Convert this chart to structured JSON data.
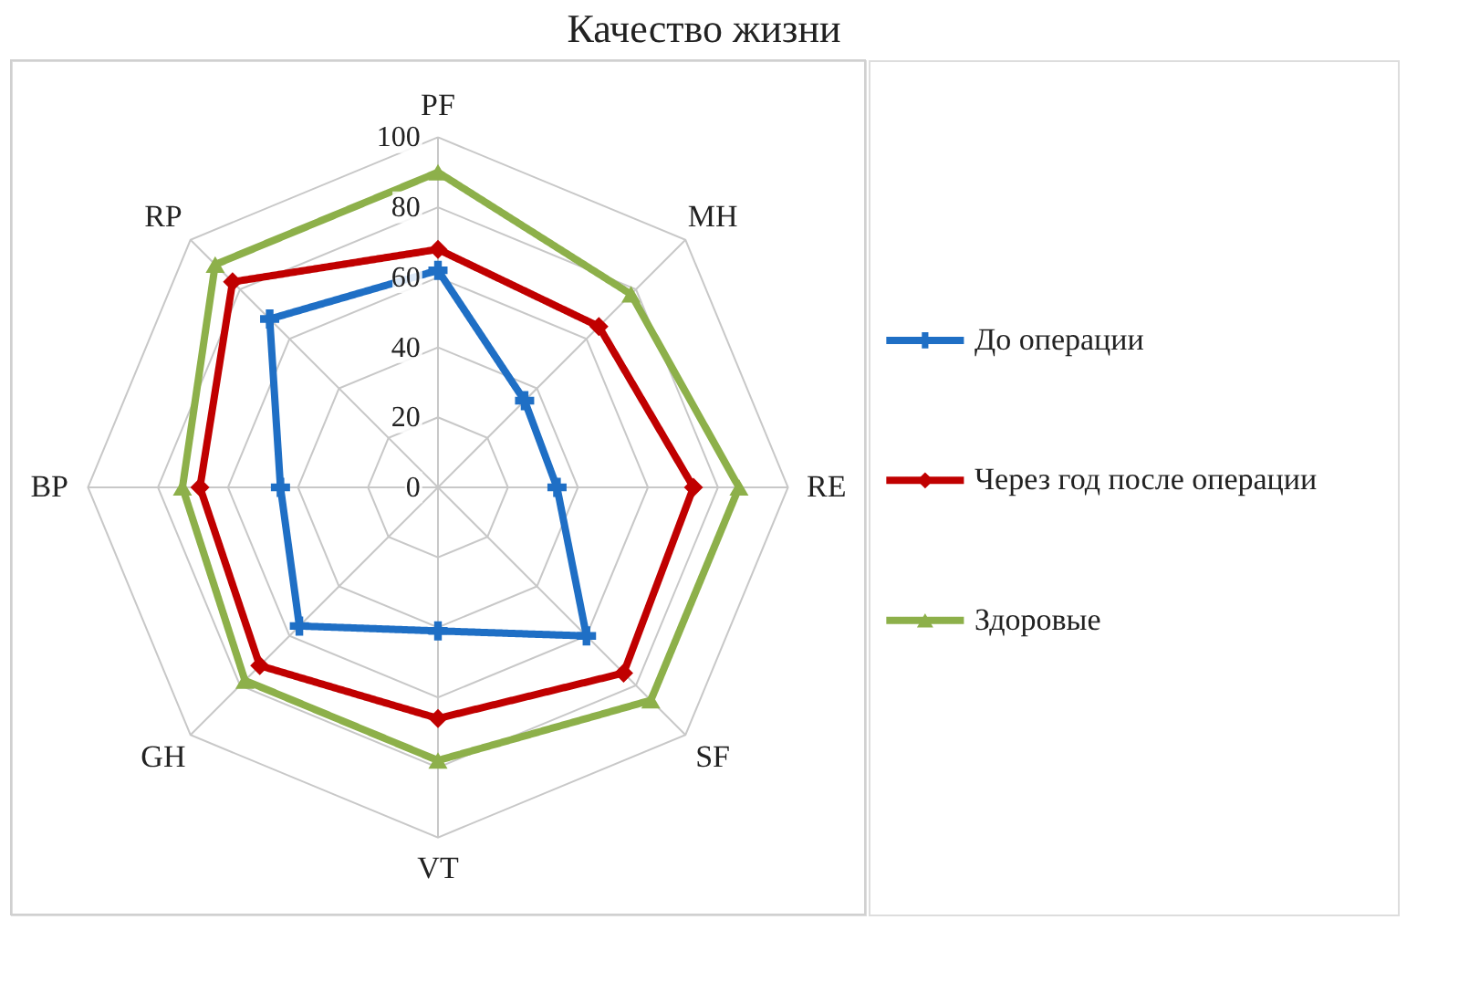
{
  "chart_data": {
    "type": "radar",
    "title": "Качество жизни",
    "categories": [
      "PF",
      "MH",
      "RE",
      "SF",
      "VT",
      "GH",
      "BP",
      "RP"
    ],
    "ylim": [
      0,
      100
    ],
    "yticks": [
      0,
      20,
      40,
      60,
      80,
      100
    ],
    "grid": true,
    "legend": "right",
    "line_style": "solid",
    "series": [
      {
        "name": "До операции",
        "color": "#1f6fc5",
        "marker": "cross",
        "values": [
          62,
          35,
          34,
          60,
          41,
          56,
          45,
          68
        ]
      },
      {
        "name": "Через год после операции",
        "color": "#c00000",
        "marker": "diamond",
        "values": [
          68,
          65,
          73,
          75,
          66,
          72,
          68,
          83
        ]
      },
      {
        "name": "Здоровые",
        "color": "#8db04a",
        "marker": "triangle",
        "values": [
          90,
          78,
          86,
          86,
          78,
          78,
          73,
          90
        ]
      }
    ]
  }
}
